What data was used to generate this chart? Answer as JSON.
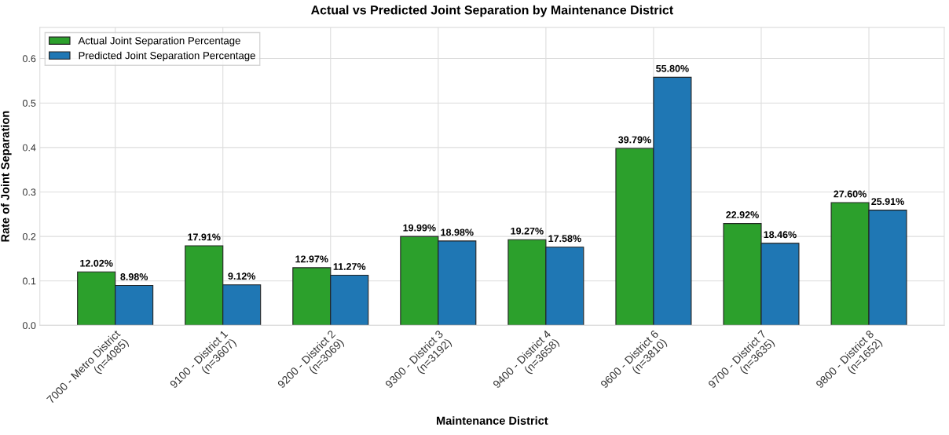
{
  "chart_data": {
    "type": "bar",
    "title": "Actual vs Predicted Joint Separation by Maintenance District",
    "xlabel": "Maintenance District",
    "ylabel": "Rate of Joint Separation",
    "categories": [
      "7000 - Metro District\n(n=4085)",
      "9100 - District 1\n(n=3607)",
      "9200 - District 2\n(n=3069)",
      "9300 - District 3\n(n=3192)",
      "9400 - District 4\n(n=3658)",
      "9600 - District 6\n(n=3810)",
      "9700 - District 7\n(n=3635)",
      "9800 - District 8\n(n=1652)"
    ],
    "series": [
      {
        "name": "Actual Joint Separation Percentage",
        "color": "#2ca02c",
        "values": [
          0.1202,
          0.1791,
          0.1297,
          0.1999,
          0.1927,
          0.3979,
          0.2292,
          0.276
        ],
        "value_labels": [
          "12.02%",
          "17.91%",
          "12.97%",
          "19.99%",
          "19.27%",
          "39.79%",
          "22.92%",
          "27.60%"
        ]
      },
      {
        "name": "Predicted Joint Separation Percentage",
        "color": "#1f77b4",
        "values": [
          0.0898,
          0.0912,
          0.1127,
          0.1898,
          0.1758,
          0.558,
          0.1846,
          0.2591
        ],
        "value_labels": [
          "8.98%",
          "9.12%",
          "11.27%",
          "18.98%",
          "17.58%",
          "55.80%",
          "18.46%",
          "25.91%"
        ]
      }
    ],
    "ylim": [
      0,
      0.67
    ],
    "yticks": [
      {
        "value": 0,
        "label": "0.0"
      },
      0.1,
      0.2,
      0.3,
      0.4,
      0.5,
      0.6
    ],
    "grid": true,
    "legend": "top left"
  }
}
